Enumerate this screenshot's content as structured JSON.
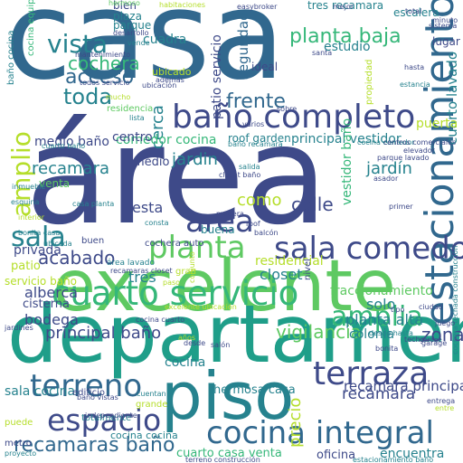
{
  "palette": {
    "navy": "#3b4a8c",
    "blue": "#2f6f9a",
    "teal": "#21918c",
    "green": "#2db87a",
    "lime": "#7ad151",
    "yellow": "#c8d435",
    "purple": "#472d7b",
    "dark": "#440154"
  },
  "words": [
    {
      "text": "casa",
      "color": "#31688e"
    },
    {
      "text": "área",
      "color": "#3e4a89"
    },
    {
      "text": "excelente",
      "color": "#5ec962"
    },
    {
      "text": "departamento",
      "color": "#1f9e89"
    },
    {
      "text": "piso",
      "color": "#26828e"
    },
    {
      "text": "estacionamiento",
      "color": "#31688e"
    },
    {
      "text": "baño completo",
      "color": "#3e4a89"
    },
    {
      "text": "cuarto servicio",
      "color": "#35b779"
    },
    {
      "text": "sala comedor",
      "color": "#3e4a89"
    },
    {
      "text": "cocina integral",
      "color": "#31688e"
    },
    {
      "text": "terraza",
      "color": "#3e4a89"
    },
    {
      "text": "espacio",
      "color": "#3e4a89"
    },
    {
      "text": "terreno",
      "color": "#31688e"
    },
    {
      "text": "planta",
      "color": "#5ec962"
    },
    {
      "text": "amplia",
      "color": "#35b779"
    },
    {
      "text": "area",
      "color": "#3e4a89"
    },
    {
      "text": "sala",
      "color": "#26828e"
    },
    {
      "text": "amplio",
      "color": "#b5de2b"
    },
    {
      "text": "vista",
      "color": "#26828e"
    },
    {
      "text": "planta baja",
      "color": "#35b779"
    },
    {
      "text": "cochera",
      "color": "#35b779"
    },
    {
      "text": "acceso",
      "color": "#31688e"
    },
    {
      "text": "toda",
      "color": "#26828e"
    },
    {
      "text": "frente",
      "color": "#31688e"
    },
    {
      "text": "recamaras baño",
      "color": "#31688e"
    },
    {
      "text": "recamara",
      "color": "#26828e"
    },
    {
      "text": "jardín",
      "color": "#26828e"
    },
    {
      "text": "calle",
      "color": "#3e4a89"
    },
    {
      "text": "acabado",
      "color": "#3e4a89"
    },
    {
      "text": "vigilancia",
      "color": "#5ec962"
    },
    {
      "text": "principal baño",
      "color": "#3e4a89"
    },
    {
      "text": "zona",
      "color": "#3e4a89"
    },
    {
      "text": "bodega",
      "color": "#3e4a89"
    },
    {
      "text": "alberca",
      "color": "#3e4a89"
    },
    {
      "text": "recamara principal",
      "color": "#3e4a89"
    },
    {
      "text": "cocina",
      "color": "#26828e"
    },
    {
      "text": "recámara",
      "color": "#3e4a89"
    },
    {
      "text": "precio",
      "color": "#b5de2b"
    },
    {
      "text": "seguridad",
      "color": "#31688e"
    },
    {
      "text": "cuadra",
      "color": "#26828e"
    },
    {
      "text": "estudio",
      "color": "#26828e"
    },
    {
      "text": "patio servicio",
      "color": "#3e4a89"
    },
    {
      "text": "cuarto lavado",
      "color": "#26828e"
    },
    {
      "text": "cerca",
      "color": "#26828e"
    },
    {
      "text": "comedor cocina",
      "color": "#35b779"
    },
    {
      "text": "principal vestidor",
      "color": "#26828e"
    },
    {
      "text": "jardin",
      "color": "#26828e"
    },
    {
      "text": "esta",
      "color": "#3e4a89"
    },
    {
      "text": "como",
      "color": "#b5de2b"
    },
    {
      "text": "medio baño",
      "color": "#3e4a89"
    },
    {
      "text": "tres",
      "color": "#26828e"
    },
    {
      "text": "solo",
      "color": "#26828e"
    },
    {
      "text": "planta alta",
      "color": "#26828e"
    },
    {
      "text": "colonia",
      "color": "#26828e"
    },
    {
      "text": "fraccionamiento",
      "color": "#5ec962"
    },
    {
      "text": "residencial",
      "color": "#b5de2b"
    },
    {
      "text": "closet",
      "color": "#26828e"
    },
    {
      "text": "privada",
      "color": "#3e4a89"
    },
    {
      "text": "patio",
      "color": "#b5de2b"
    },
    {
      "text": "servicio baño",
      "color": "#b5de2b"
    },
    {
      "text": "cisterna",
      "color": "#3e4a89"
    },
    {
      "text": "sala cocina",
      "color": "#26828e"
    },
    {
      "text": "hermosa casa",
      "color": "#26828e"
    },
    {
      "text": "cuarto casa venta",
      "color": "#35b779"
    },
    {
      "text": "oficina",
      "color": "#3e4a89"
    },
    {
      "text": "encuentra",
      "color": "#26828e"
    },
    {
      "text": "puerta",
      "color": "#b5de2b"
    },
    {
      "text": "vestidor baño",
      "color": "#35b779"
    },
    {
      "text": "centro",
      "color": "#3e4a89"
    },
    {
      "text": "medio",
      "color": "#3e4a89"
    },
    {
      "text": "venta",
      "color": "#5ec962"
    },
    {
      "text": "lugar",
      "color": "#3e4a89"
    },
    {
      "text": "bien",
      "color": "#3e4a89"
    },
    {
      "text": "plaza",
      "color": "#26828e"
    },
    {
      "text": "parque",
      "color": "#26828e"
    },
    {
      "text": "tres recamara",
      "color": "#26828e"
    },
    {
      "text": "escalera",
      "color": "#26828e"
    },
    {
      "text": "hermoso",
      "color": "#5ec962"
    },
    {
      "text": "ubicado",
      "color": "#b5de2b"
    },
    {
      "text": "ideal",
      "color": "#3e4a89"
    },
    {
      "text": "roof garden",
      "color": "#26828e"
    },
    {
      "text": "nivel",
      "color": "#3e4a89"
    },
    {
      "text": "buena",
      "color": "#26828e"
    },
    {
      "text": "área lavado",
      "color": "#26828e"
    },
    {
      "text": "cocina cocina",
      "color": "#26828e"
    },
    {
      "text": "cochera auto",
      "color": "#3e4a89"
    },
    {
      "text": "buen",
      "color": "#3e4a89"
    },
    {
      "text": "baño cocina",
      "color": "#26828e"
    },
    {
      "text": "cocina equipada",
      "color": "#35b779"
    },
    {
      "text": "propiedad",
      "color": "#b5de2b"
    },
    {
      "text": "metro",
      "color": "#3e4a89"
    },
    {
      "text": "edificio",
      "color": "#3e4a89"
    },
    {
      "text": "totalmente",
      "color": "#26828e"
    },
    {
      "text": "grande",
      "color": "#b5de2b"
    },
    {
      "text": "puede",
      "color": "#b5de2b"
    },
    {
      "text": "entrega",
      "color": "#3e4a89"
    },
    {
      "text": "desde hasta",
      "color": "#26828e"
    },
    {
      "text": "techo",
      "color": "#3e4a89"
    },
    {
      "text": "bonita",
      "color": "#3e4a89"
    },
    {
      "text": "residencia",
      "color": "#5ec962"
    },
    {
      "text": "baño recamara",
      "color": "#26828e"
    },
    {
      "text": "closet baño",
      "color": "#3e4a89"
    },
    {
      "text": "proyecto",
      "color": "#26828e"
    },
    {
      "text": "terreno construcción",
      "color": "#3e4a89"
    },
    {
      "text": "estacionamiento baño",
      "color": "#26828e"
    },
    {
      "text": "cochera techada construcción",
      "color": "#26828e"
    },
    {
      "text": "todos servicio",
      "color": "#3e4a89"
    },
    {
      "text": "mantenimiento",
      "color": "#3e4a89"
    },
    {
      "text": "desarrollo",
      "color": "#3e4a89"
    },
    {
      "text": "habitaciones",
      "color": "#b5de2b"
    },
    {
      "text": "easybroker",
      "color": "#3e4a89"
    },
    {
      "text": "mejor",
      "color": "#3e4a89"
    },
    {
      "text": "total",
      "color": "#3e4a89"
    },
    {
      "text": "minuto",
      "color": "#3e4a89"
    },
    {
      "text": "sistema",
      "color": "#3e4a89"
    },
    {
      "text": "santa",
      "color": "#3e4a89"
    },
    {
      "text": "estancia",
      "color": "#26828e"
    },
    {
      "text": "hasta",
      "color": "#3e4a89"
    },
    {
      "text": "sobre",
      "color": "#3e4a89"
    },
    {
      "text": "cocina comedor",
      "color": "#26828e"
    },
    {
      "text": "centros comerciales",
      "color": "#3e4a89"
    },
    {
      "text": "parque lavado",
      "color": "#3e4a89"
    },
    {
      "text": "lista",
      "color": "#26828e"
    },
    {
      "text": "salida",
      "color": "#26828e"
    },
    {
      "text": "primer",
      "color": "#3e4a89"
    },
    {
      "text": "balcón",
      "color": "#3e4a89"
    },
    {
      "text": "madera",
      "color": "#3e4a89"
    },
    {
      "text": "consta",
      "color": "#26828e"
    },
    {
      "text": "roof",
      "color": "#3e4a89"
    },
    {
      "text": "tipo",
      "color": "#3e4a89"
    },
    {
      "text": "ciudad",
      "color": "#3e4a89"
    },
    {
      "text": "juego",
      "color": "#3e4a89"
    },
    {
      "text": "garage",
      "color": "#3e4a89"
    },
    {
      "text": "salón",
      "color": "#3e4a89"
    },
    {
      "text": "años",
      "color": "#b5de2b"
    },
    {
      "text": "entre",
      "color": "#b5de2b"
    },
    {
      "text": "cuentan",
      "color": "#26828e"
    },
    {
      "text": "baño vistas",
      "color": "#3e4a89"
    },
    {
      "text": "independiente",
      "color": "#3e4a89"
    },
    {
      "text": "ubicada",
      "color": "#26828e"
    },
    {
      "text": "jardines",
      "color": "#3e4a89"
    },
    {
      "text": "conjunto",
      "color": "#b5de2b"
    },
    {
      "text": "casa planta",
      "color": "#26828e"
    },
    {
      "text": "interior",
      "color": "#b5de2b"
    },
    {
      "text": "esquina",
      "color": "#26828e"
    },
    {
      "text": "inmueble",
      "color": "#26828e"
    },
    {
      "text": "bonita casa",
      "color": "#26828e"
    },
    {
      "text": "recamaras closet",
      "color": "#3e4a89"
    },
    {
      "text": "cuarto baño",
      "color": "#26828e"
    },
    {
      "text": "excelente ubicación",
      "color": "#b5de2b"
    },
    {
      "text": "cocina cuarto",
      "color": "#3e4a89"
    },
    {
      "text": "garage",
      "color": "#3e4a89"
    },
    {
      "text": "ubicación",
      "color": "#3e4a89"
    },
    {
      "text": "además",
      "color": "#3e4a89"
    },
    {
      "text": "mucho",
      "color": "#b5de2b"
    },
    {
      "text": "elevador",
      "color": "#3e4a89"
    },
    {
      "text": "vende",
      "color": "#26828e"
    },
    {
      "text": "asador",
      "color": "#3e4a89"
    },
    {
      "text": "varios",
      "color": "#3e4a89"
    },
    {
      "text": "gran",
      "color": "#b5de2b"
    },
    {
      "text": "paso",
      "color": "#b5de2b"
    },
    {
      "text": "desde",
      "color": "#3e4a89"
    }
  ]
}
